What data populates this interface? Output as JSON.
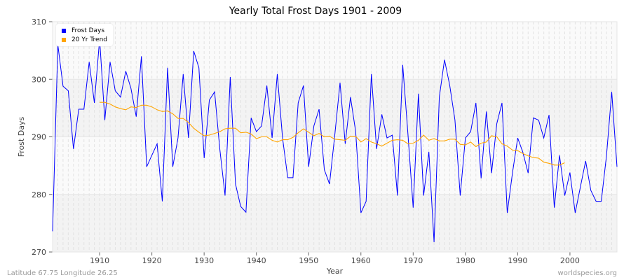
{
  "chart_data": {
    "type": "line",
    "title": "Yearly Total Frost Days 1901 - 2009",
    "xlabel": "Year",
    "ylabel": "Frost Days",
    "xlim": [
      1901,
      2009
    ],
    "ylim": [
      270,
      310
    ],
    "xticks": [
      1910,
      1920,
      1930,
      1940,
      1950,
      1960,
      1970,
      1980,
      1990,
      2000
    ],
    "yticks": [
      270,
      280,
      290,
      300,
      310
    ],
    "grid": true,
    "legend_position": "top-left",
    "series": [
      {
        "name": "Frost Days",
        "color": "#0000ff",
        "x_start": 1901,
        "values": [
          273.6,
          306,
          298.8,
          298,
          287.9,
          294.8,
          294.8,
          303,
          295.9,
          307,
          292.9,
          303,
          298,
          296.9,
          301.4,
          298.4,
          293.5,
          304,
          284.8,
          286.8,
          288.8,
          278.8,
          302,
          284.8,
          289.8,
          300.9,
          289.8,
          304.9,
          302,
          286.3,
          296.4,
          297.8,
          287.9,
          279.8,
          300.4,
          281.8,
          277.9,
          276.9,
          293.3,
          290.9,
          291.9,
          298.9,
          289.8,
          300.9,
          289.8,
          282.9,
          282.9,
          295.9,
          298.9,
          284.8,
          291.9,
          294.8,
          284.3,
          281.8,
          290.3,
          299.4,
          288.8,
          296.9,
          290.9,
          276.8,
          278.8,
          300.9,
          287.9,
          293.9,
          289.8,
          290.3,
          279.8,
          302.5,
          290.4,
          277.7,
          297.5,
          279.8,
          287.4,
          271.7,
          296.9,
          303.4,
          298.9,
          292.9,
          279.8,
          289.8,
          290.9,
          295.9,
          282.8,
          294.4,
          283.7,
          292.3,
          295.9,
          276.8,
          283.7,
          289.8,
          287.3,
          283.7,
          293.3,
          292.9,
          289.8,
          293.8,
          277.7,
          286.8,
          279.8,
          283.8,
          276.8,
          281.3,
          285.8,
          280.7,
          278.8,
          278.8,
          286.8,
          297.8,
          284.8
        ]
      },
      {
        "name": "20 Yr Trend",
        "color": "#ffa500",
        "x_start": 1910,
        "values": [
          296,
          296,
          295.7,
          295.2,
          294.9,
          294.7,
          295.2,
          295.1,
          295.5,
          295.5,
          295.2,
          294.7,
          294.4,
          294.5,
          294,
          293.2,
          293.2,
          292.5,
          291.5,
          290.8,
          290.2,
          290.3,
          290.6,
          290.9,
          291.4,
          291.5,
          291.5,
          290.7,
          290.8,
          290.5,
          289.7,
          290,
          290,
          289.4,
          289.1,
          289.5,
          289.5,
          289.9,
          290.7,
          291.4,
          290.8,
          290.2,
          290.6,
          290,
          290.1,
          289.6,
          289.5,
          289.4,
          290.1,
          290.1,
          289.1,
          289.7,
          289.1,
          288.8,
          288.4,
          288.9,
          289.4,
          289.5,
          289.4,
          288.8,
          288.9,
          289.4,
          290.3,
          289.4,
          289.7,
          289.3,
          289.3,
          289.6,
          289.6,
          288.7,
          288.6,
          289.1,
          288.3,
          288.9,
          289.1,
          290.2,
          290,
          288.8,
          288.4,
          287.7,
          287.6,
          287.1,
          286.7,
          286.4,
          286.3,
          285.6,
          285.4,
          285.1,
          285.1,
          285.5
        ]
      }
    ]
  },
  "footer": {
    "left": "Latitude 67.75 Longitude 26.25",
    "right": "worldspecies.org"
  }
}
